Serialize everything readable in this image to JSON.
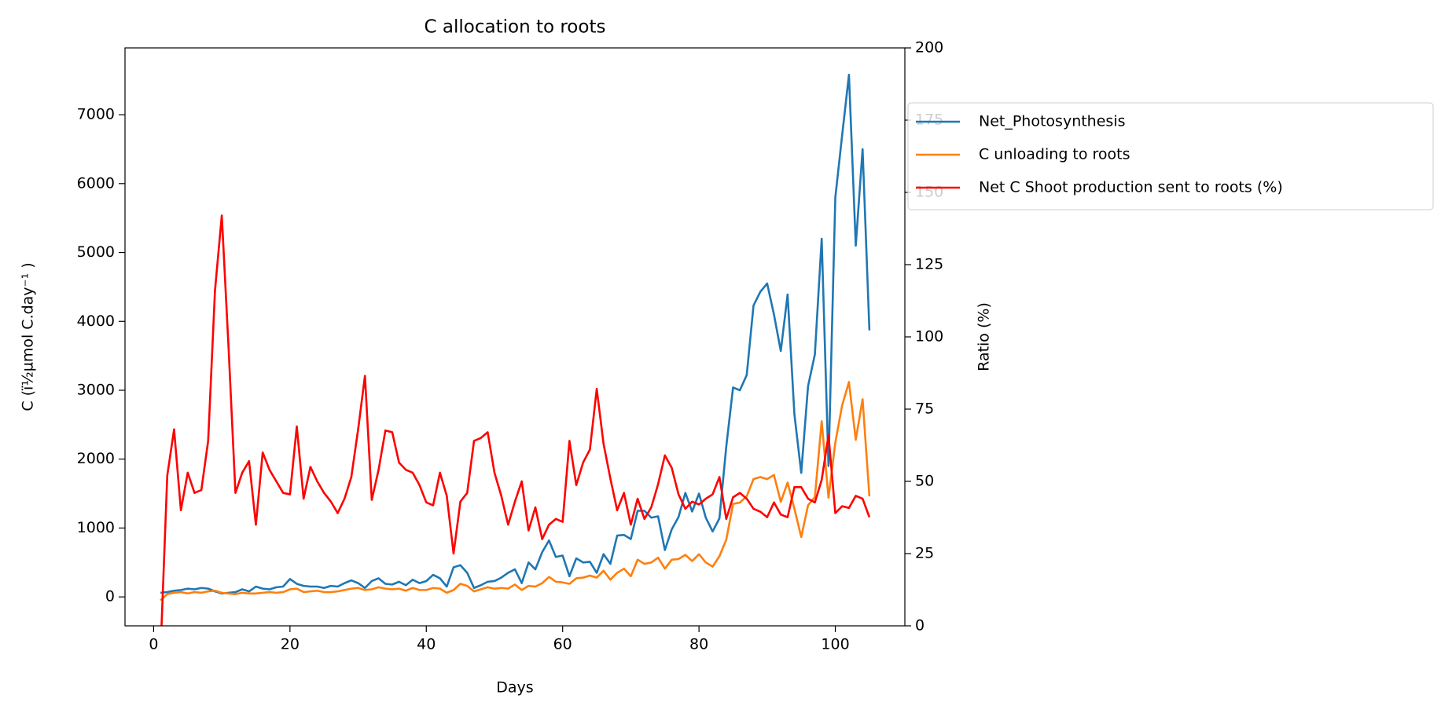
{
  "chart_data": {
    "type": "line",
    "title": "C allocation to roots",
    "xlabel": "Days",
    "ylabel": "C (ï½µmol C.day⁻¹ )",
    "y2label": "Ratio (%)",
    "x": [
      1,
      2,
      3,
      4,
      5,
      6,
      7,
      8,
      9,
      10,
      11,
      12,
      13,
      14,
      15,
      16,
      17,
      18,
      19,
      20,
      21,
      22,
      23,
      24,
      25,
      26,
      27,
      28,
      29,
      30,
      31,
      32,
      33,
      34,
      35,
      36,
      37,
      38,
      39,
      40,
      41,
      42,
      43,
      44,
      45,
      46,
      47,
      48,
      49,
      50,
      51,
      52,
      53,
      54,
      55,
      56,
      57,
      58,
      59,
      60,
      61,
      62,
      63,
      64,
      65,
      66,
      67,
      68,
      69,
      70,
      71,
      72,
      73,
      74,
      75,
      76,
      77,
      78,
      79,
      80,
      81,
      82,
      83,
      84,
      85,
      86,
      87,
      88,
      89,
      90,
      91,
      92,
      93,
      94,
      95,
      96,
      97,
      98,
      99,
      100,
      101,
      102,
      103,
      104,
      105
    ],
    "series": [
      {
        "name": "Net_Photosynthesis",
        "color": "#1f77b4",
        "axis": "y",
        "values": [
          60,
          70,
          90,
          100,
          120,
          110,
          130,
          120,
          80,
          50,
          60,
          70,
          110,
          80,
          150,
          120,
          110,
          140,
          150,
          260,
          190,
          160,
          150,
          150,
          130,
          160,
          150,
          200,
          240,
          200,
          130,
          230,
          270,
          190,
          180,
          220,
          170,
          250,
          200,
          230,
          320,
          270,
          150,
          430,
          460,
          350,
          130,
          170,
          220,
          230,
          280,
          350,
          400,
          200,
          500,
          400,
          650,
          820,
          580,
          600,
          300,
          560,
          500,
          510,
          350,
          620,
          480,
          890,
          900,
          840,
          1250,
          1250,
          1150,
          1170,
          680,
          980,
          1160,
          1510,
          1240,
          1500,
          1150,
          950,
          1140,
          2180,
          3040,
          3000,
          3220,
          4230,
          4430,
          4550,
          4100,
          3570,
          4390,
          2650,
          1800,
          3060,
          3520,
          5200,
          1900,
          5800,
          6700,
          7580,
          5100,
          6500,
          3870
        ]
      },
      {
        "name": "C unloading to roots",
        "color": "#ff7f0e",
        "axis": "y",
        "values": [
          -50,
          40,
          60,
          70,
          50,
          70,
          60,
          80,
          90,
          60,
          50,
          40,
          60,
          50,
          50,
          60,
          70,
          60,
          70,
          110,
          120,
          70,
          80,
          90,
          70,
          70,
          80,
          100,
          120,
          130,
          100,
          110,
          140,
          120,
          110,
          120,
          90,
          130,
          100,
          100,
          130,
          120,
          60,
          100,
          190,
          160,
          80,
          110,
          140,
          120,
          130,
          120,
          180,
          100,
          160,
          150,
          200,
          290,
          220,
          210,
          190,
          270,
          280,
          310,
          280,
          380,
          250,
          350,
          410,
          300,
          540,
          480,
          500,
          570,
          410,
          540,
          550,
          610,
          520,
          620,
          500,
          440,
          590,
          830,
          1350,
          1370,
          1460,
          1710,
          1740,
          1710,
          1770,
          1380,
          1660,
          1280,
          870,
          1330,
          1450,
          2550,
          1440,
          2240,
          2780,
          3120,
          2280,
          2870,
          1460
        ]
      },
      {
        "name": "Net C Shoot production sent to roots (%)",
        "color": "#ff0000",
        "axis": "y2",
        "values": [
          -10,
          52,
          68,
          40,
          53,
          46,
          47,
          64,
          116,
          142,
          96,
          46,
          53,
          57,
          35,
          60,
          54,
          50,
          46,
          45.5,
          69,
          44,
          55,
          50,
          46,
          43,
          39,
          44,
          51.5,
          68,
          86.5,
          43.6,
          54,
          67.6,
          67,
          56.5,
          54,
          53,
          48.7,
          42.7,
          41.7,
          53,
          45,
          25,
          43,
          46,
          64,
          65,
          67,
          53,
          45,
          35,
          43,
          50,
          33,
          41,
          30,
          35,
          37,
          36,
          64,
          48.7,
          56.5,
          61,
          82,
          63,
          51,
          40,
          46,
          35,
          44,
          37,
          41,
          49,
          59,
          54.7,
          45.5,
          40.5,
          43,
          42,
          44,
          45.5,
          51.5,
          37,
          44.5,
          46,
          44,
          40.5,
          39.5,
          37.6,
          42.7,
          38.5,
          37.6,
          48,
          48,
          44,
          42.7,
          50.5,
          66,
          39,
          41.4,
          40.8,
          45,
          44,
          37.6
        ]
      }
    ],
    "xlim": [
      -4.2,
      110.2
    ],
    "xticks": [
      0,
      20,
      40,
      60,
      80,
      100
    ],
    "ylim": [
      -420,
      7970
    ],
    "yticks": [
      0,
      1000,
      2000,
      3000,
      4000,
      5000,
      6000,
      7000
    ],
    "y2lim": [
      0,
      200
    ],
    "y2ticks": [
      0,
      25,
      50,
      75,
      100,
      125,
      150,
      175,
      200
    ],
    "grid": false,
    "legend": "outside right"
  }
}
